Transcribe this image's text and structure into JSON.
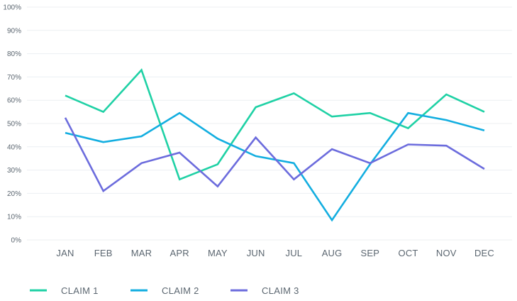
{
  "chart_data": {
    "type": "line",
    "title": "",
    "xlabel": "",
    "ylabel": "",
    "ylim": [
      0,
      100
    ],
    "grid": true,
    "legend_position": "bottom-left",
    "categories": [
      "JAN",
      "FEB",
      "MAR",
      "APR",
      "MAY",
      "JUN",
      "JUL",
      "AUG",
      "SEP",
      "OCT",
      "NOV",
      "DEC"
    ],
    "y_ticks": [
      "0%",
      "10%",
      "20%",
      "30%",
      "40%",
      "50%",
      "60%",
      "70%",
      "80%",
      "90%",
      "100%"
    ],
    "series": [
      {
        "name": "CLAIM 1",
        "color": "#1fd1a5",
        "values": [
          62,
          55,
          73,
          26,
          32.5,
          57,
          63,
          53,
          54.5,
          48,
          62.5,
          55
        ]
      },
      {
        "name": "CLAIM 2",
        "color": "#13aee0",
        "values": [
          46,
          42,
          44.5,
          54.5,
          43.5,
          36,
          33,
          8.5,
          32.5,
          54.5,
          51.5,
          47
        ]
      },
      {
        "name": "CLAIM 3",
        "color": "#6c6cdd",
        "values": [
          52.5,
          21,
          33,
          37.5,
          23,
          44,
          26,
          39,
          33,
          41,
          40.5,
          30.5
        ]
      }
    ]
  }
}
